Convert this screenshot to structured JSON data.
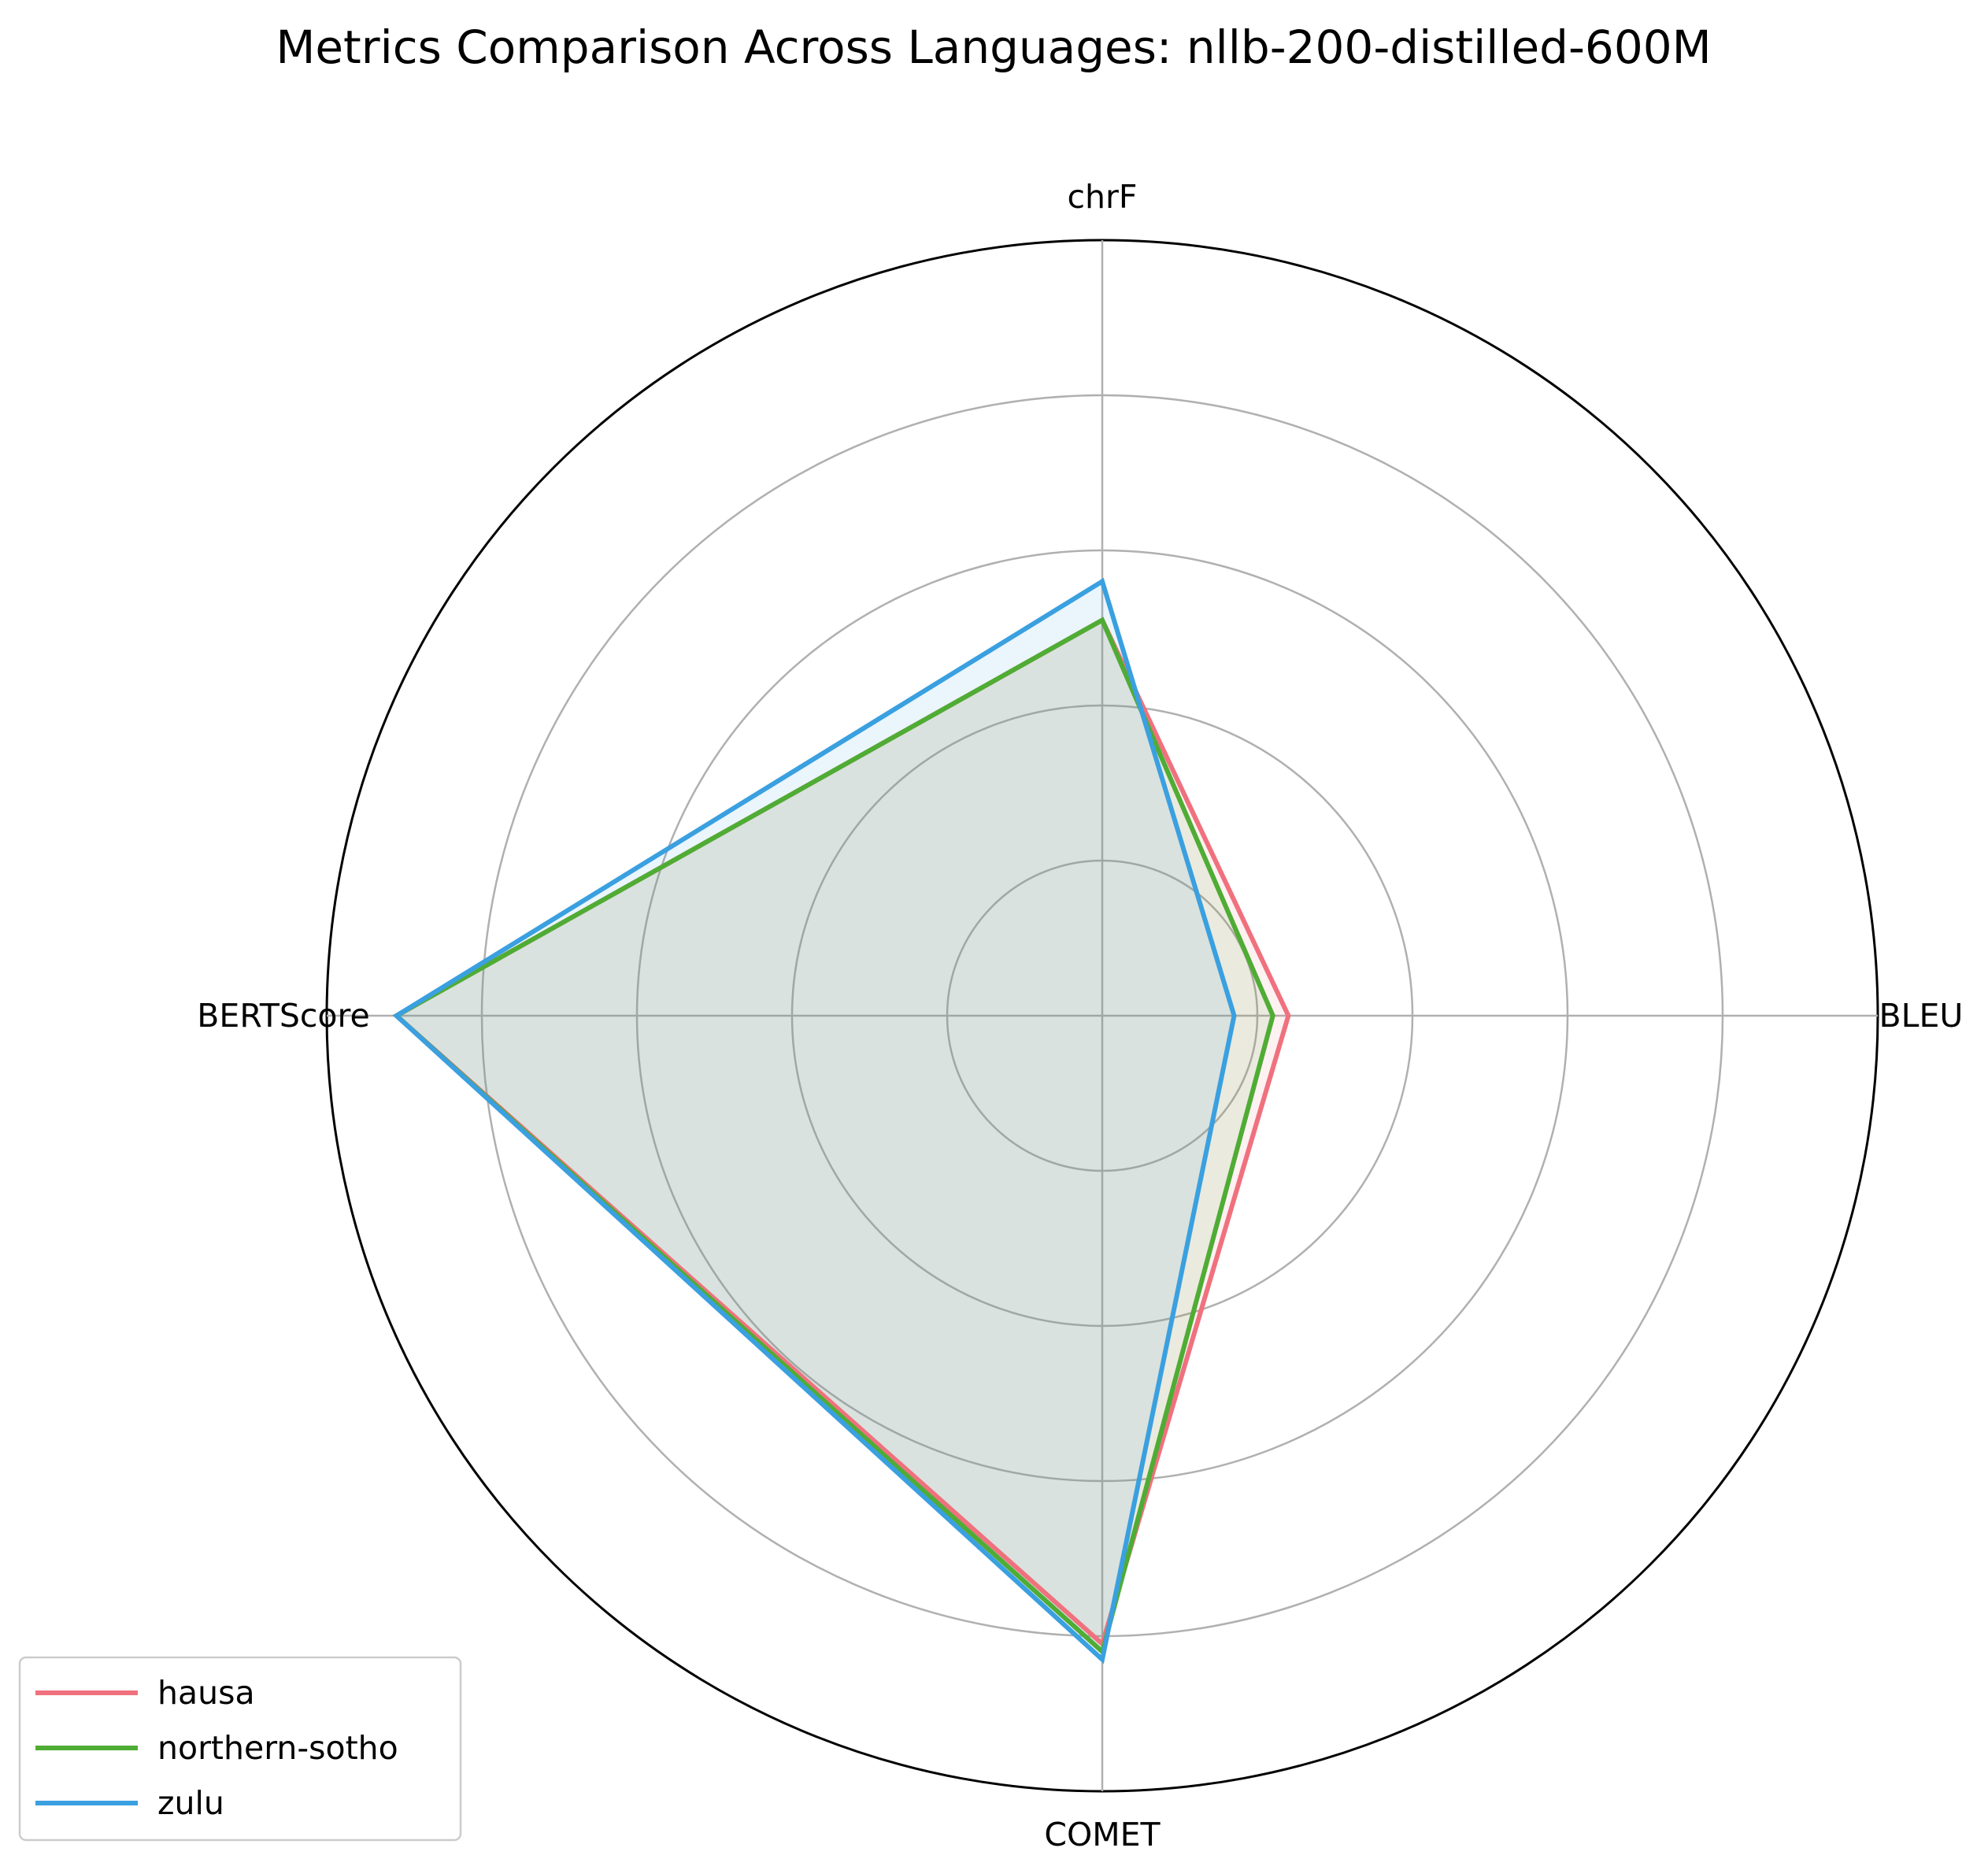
{
  "chart_data": {
    "type": "radar",
    "title": "Metrics Comparison Across Languages: nllb-200-distilled-600M",
    "categories": [
      "BLEU",
      "chrF",
      "BERTScore",
      "COMET"
    ],
    "rlim": [
      0,
      1.0
    ],
    "grid_rings": [
      0.2,
      0.4,
      0.6,
      0.8,
      1.0
    ],
    "grid": true,
    "legend": "lower-left",
    "series": [
      {
        "name": "hausa",
        "color": "#f0717e",
        "values": [
          0.24,
          0.51,
          0.91,
          0.81
        ]
      },
      {
        "name": "northern-sotho",
        "color": "#4fac34",
        "values": [
          0.22,
          0.51,
          0.91,
          0.82
        ]
      },
      {
        "name": "zulu",
        "color": "#3aa0e0",
        "values": [
          0.17,
          0.56,
          0.91,
          0.83
        ]
      }
    ]
  }
}
